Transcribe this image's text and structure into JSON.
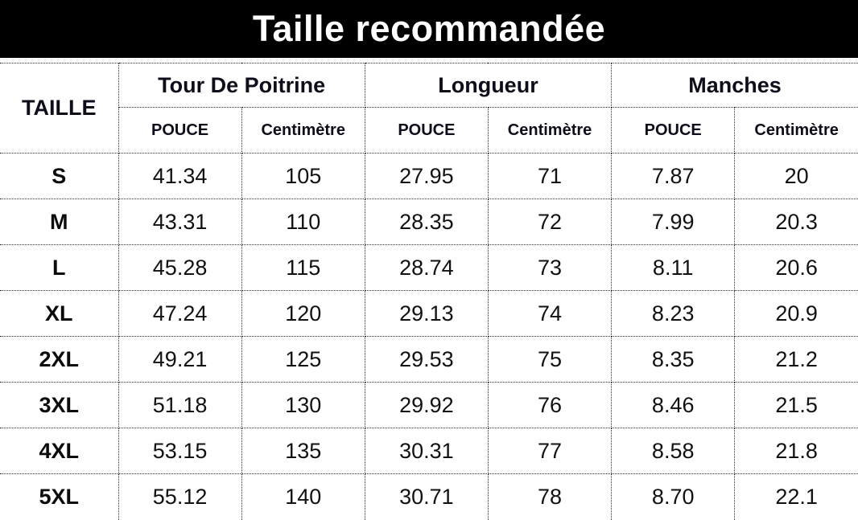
{
  "title": "Taille recommandée",
  "colors": {
    "banner_bg": "#000000",
    "banner_text": "#ffffff",
    "table_text": "#111111",
    "border": "#2b2b2b"
  },
  "table": {
    "size_col_header": "TAILLE",
    "groups": [
      {
        "label": "Tour De Poitrine"
      },
      {
        "label": "Longueur"
      },
      {
        "label": "Manches"
      }
    ],
    "unit_headers": [
      "POUCE",
      "Centimètre",
      "POUCE",
      "Centimètre",
      "POUCE",
      "Centimètre"
    ],
    "rows": [
      {
        "size": "S",
        "values": [
          "41.34",
          "105",
          "27.95",
          "71",
          "7.87",
          "20"
        ]
      },
      {
        "size": "M",
        "values": [
          "43.31",
          "110",
          "28.35",
          "72",
          "7.99",
          "20.3"
        ]
      },
      {
        "size": "L",
        "values": [
          "45.28",
          "115",
          "28.74",
          "73",
          "8.11",
          "20.6"
        ]
      },
      {
        "size": "XL",
        "values": [
          "47.24",
          "120",
          "29.13",
          "74",
          "8.23",
          "20.9"
        ]
      },
      {
        "size": "2XL",
        "values": [
          "49.21",
          "125",
          "29.53",
          "75",
          "8.35",
          "21.2"
        ]
      },
      {
        "size": "3XL",
        "values": [
          "51.18",
          "130",
          "29.92",
          "76",
          "8.46",
          "21.5"
        ]
      },
      {
        "size": "4XL",
        "values": [
          "53.15",
          "135",
          "30.31",
          "77",
          "8.58",
          "21.8"
        ]
      },
      {
        "size": "5XL",
        "values": [
          "55.12",
          "140",
          "30.71",
          "78",
          "8.70",
          "22.1"
        ]
      }
    ]
  }
}
